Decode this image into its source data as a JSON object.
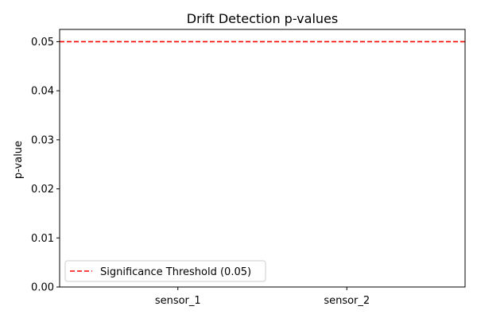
{
  "chart_data": {
    "type": "bar",
    "title": "Drift Detection p-values",
    "xlabel": "",
    "ylabel": "p-value",
    "categories": [
      "sensor_1",
      "sensor_2"
    ],
    "series": [
      {
        "values": [
          0.0,
          0.0
        ]
      }
    ],
    "ylim": [
      0.0,
      0.0525
    ],
    "yticks": [
      "0.00",
      "0.01",
      "0.02",
      "0.03",
      "0.04",
      "0.05"
    ],
    "threshold": {
      "value": 0.05,
      "label": "Significance Threshold (0.05)",
      "color": "#ff0000",
      "style": "dashed"
    },
    "bar_color": "#1f77b4",
    "grid": false,
    "legend_position": "lower-left"
  }
}
